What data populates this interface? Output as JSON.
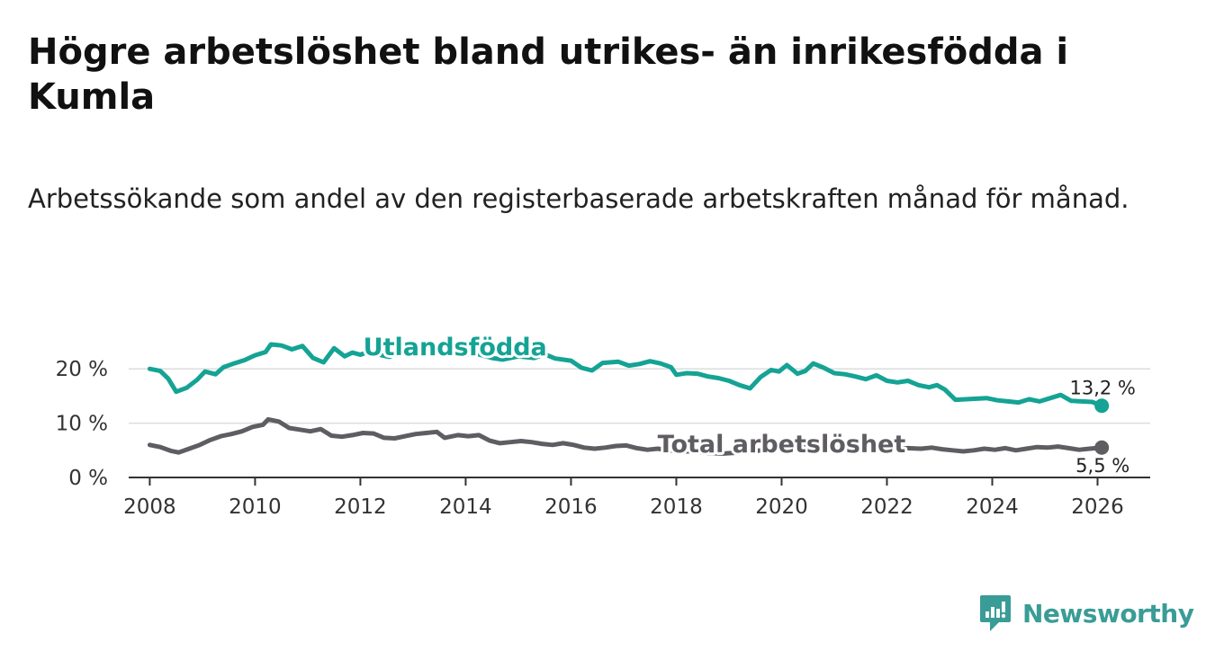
{
  "title": "Högre arbetslöshet bland utrikes- än inrikesfödda i Kumla",
  "subtitle": "Arbetssökande som andel av den registerbaserade arbetskraften månad för månad.",
  "brand": {
    "name": "Newsworthy",
    "icon": "newsworthy-logo-icon"
  },
  "colors": {
    "foreign_born": "#14a394",
    "total": "#5f5d62",
    "grid": "#dddddd",
    "axis": "#333333"
  },
  "chart_data": {
    "type": "line",
    "title": "Högre arbetslöshet bland utrikes- än inrikesfödda i Kumla",
    "subtitle": "Arbetssökande som andel av den registerbaserade arbetskraften månad för månad.",
    "xlabel": "",
    "ylabel": "",
    "xlim": [
      2007.6,
      2027.0
    ],
    "ylim": [
      0,
      25
    ],
    "x_ticks": [
      2008,
      2010,
      2012,
      2014,
      2016,
      2018,
      2020,
      2022,
      2024,
      2026
    ],
    "x_tick_labels": [
      "2008",
      "2010",
      "2012",
      "2014",
      "2016",
      "2018",
      "2020",
      "2022",
      "2024",
      "2026"
    ],
    "y_ticks": [
      0,
      10,
      20
    ],
    "y_tick_labels": [
      "0 %",
      "10 %",
      "20 %"
    ],
    "grid": "horizontal",
    "legend": "inline labels",
    "series": [
      {
        "name": "Utlandsfödda",
        "color": "#14a394",
        "end_label": "13,2 %",
        "last_value": 13.2,
        "points": [
          [
            2008.0,
            20.0
          ],
          [
            2008.2,
            19.6
          ],
          [
            2008.35,
            18.2
          ],
          [
            2008.5,
            15.8
          ],
          [
            2008.7,
            16.5
          ],
          [
            2008.9,
            18.0
          ],
          [
            2009.05,
            19.5
          ],
          [
            2009.25,
            19.0
          ],
          [
            2009.4,
            20.3
          ],
          [
            2009.6,
            21.0
          ],
          [
            2009.8,
            21.6
          ],
          [
            2010.0,
            22.5
          ],
          [
            2010.2,
            23.1
          ],
          [
            2010.3,
            24.5
          ],
          [
            2010.5,
            24.3
          ],
          [
            2010.7,
            23.6
          ],
          [
            2010.9,
            24.2
          ],
          [
            2011.1,
            22.0
          ],
          [
            2011.3,
            21.2
          ],
          [
            2011.5,
            23.8
          ],
          [
            2011.7,
            22.3
          ],
          [
            2011.85,
            23.0
          ],
          [
            2012.0,
            22.6
          ],
          [
            2012.2,
            23.3
          ],
          [
            2012.4,
            22.5
          ],
          [
            2012.55,
            22.2
          ],
          [
            2012.7,
            22.9
          ],
          [
            2013.0,
            23.0
          ],
          [
            2013.4,
            22.9
          ],
          [
            2013.8,
            22.6
          ],
          [
            2014.2,
            22.8
          ],
          [
            2014.5,
            22.0
          ],
          [
            2014.7,
            21.7
          ],
          [
            2015.0,
            22.3
          ],
          [
            2015.3,
            22.0
          ],
          [
            2015.5,
            22.7
          ],
          [
            2015.7,
            21.9
          ],
          [
            2016.0,
            21.5
          ],
          [
            2016.2,
            20.2
          ],
          [
            2016.4,
            19.7
          ],
          [
            2016.6,
            21.1
          ],
          [
            2016.9,
            21.3
          ],
          [
            2017.1,
            20.6
          ],
          [
            2017.3,
            20.9
          ],
          [
            2017.5,
            21.4
          ],
          [
            2017.7,
            21.0
          ],
          [
            2017.9,
            20.3
          ],
          [
            2018.0,
            18.9
          ],
          [
            2018.2,
            19.2
          ],
          [
            2018.4,
            19.1
          ],
          [
            2018.6,
            18.6
          ],
          [
            2018.8,
            18.3
          ],
          [
            2019.0,
            17.8
          ],
          [
            2019.2,
            17.0
          ],
          [
            2019.4,
            16.4
          ],
          [
            2019.6,
            18.5
          ],
          [
            2019.8,
            19.8
          ],
          [
            2019.95,
            19.5
          ],
          [
            2020.1,
            20.7
          ],
          [
            2020.3,
            19.1
          ],
          [
            2020.45,
            19.6
          ],
          [
            2020.6,
            21.0
          ],
          [
            2020.8,
            20.2
          ],
          [
            2021.0,
            19.2
          ],
          [
            2021.2,
            19.0
          ],
          [
            2021.4,
            18.6
          ],
          [
            2021.6,
            18.1
          ],
          [
            2021.8,
            18.8
          ],
          [
            2022.0,
            17.8
          ],
          [
            2022.2,
            17.5
          ],
          [
            2022.4,
            17.8
          ],
          [
            2022.6,
            17.0
          ],
          [
            2022.8,
            16.6
          ],
          [
            2022.95,
            17.0
          ],
          [
            2023.1,
            16.2
          ],
          [
            2023.3,
            14.3
          ],
          [
            2023.5,
            14.4
          ],
          [
            2023.7,
            14.5
          ],
          [
            2023.9,
            14.6
          ],
          [
            2024.1,
            14.2
          ],
          [
            2024.3,
            14.0
          ],
          [
            2024.5,
            13.8
          ],
          [
            2024.7,
            14.4
          ],
          [
            2024.9,
            14.0
          ],
          [
            2025.1,
            14.6
          ],
          [
            2025.3,
            15.2
          ],
          [
            2025.5,
            14.1
          ],
          [
            2025.7,
            14.0
          ],
          [
            2025.9,
            13.9
          ],
          [
            2026.08,
            13.2
          ]
        ]
      },
      {
        "name": "Total arbetslöshet",
        "color": "#5f5d62",
        "end_label": "5,5 %",
        "last_value": 5.5,
        "points": [
          [
            2008.0,
            6.0
          ],
          [
            2008.2,
            5.6
          ],
          [
            2008.4,
            4.9
          ],
          [
            2008.55,
            4.6
          ],
          [
            2008.75,
            5.3
          ],
          [
            2008.95,
            6.0
          ],
          [
            2009.15,
            6.9
          ],
          [
            2009.35,
            7.6
          ],
          [
            2009.55,
            8.0
          ],
          [
            2009.75,
            8.5
          ],
          [
            2009.95,
            9.3
          ],
          [
            2010.15,
            9.7
          ],
          [
            2010.25,
            10.7
          ],
          [
            2010.45,
            10.3
          ],
          [
            2010.65,
            9.1
          ],
          [
            2010.85,
            8.8
          ],
          [
            2011.05,
            8.5
          ],
          [
            2011.25,
            8.9
          ],
          [
            2011.45,
            7.7
          ],
          [
            2011.65,
            7.5
          ],
          [
            2011.85,
            7.8
          ],
          [
            2012.05,
            8.2
          ],
          [
            2012.25,
            8.1
          ],
          [
            2012.45,
            7.3
          ],
          [
            2012.65,
            7.2
          ],
          [
            2012.85,
            7.6
          ],
          [
            2013.05,
            8.0
          ],
          [
            2013.25,
            8.2
          ],
          [
            2013.45,
            8.4
          ],
          [
            2013.6,
            7.3
          ],
          [
            2013.85,
            7.8
          ],
          [
            2014.05,
            7.6
          ],
          [
            2014.25,
            7.8
          ],
          [
            2014.45,
            6.8
          ],
          [
            2014.65,
            6.3
          ],
          [
            2014.85,
            6.5
          ],
          [
            2015.05,
            6.7
          ],
          [
            2015.25,
            6.5
          ],
          [
            2015.45,
            6.2
          ],
          [
            2015.65,
            6.0
          ],
          [
            2015.85,
            6.3
          ],
          [
            2016.05,
            6.0
          ],
          [
            2016.25,
            5.5
          ],
          [
            2016.45,
            5.3
          ],
          [
            2016.65,
            5.5
          ],
          [
            2016.85,
            5.8
          ],
          [
            2017.05,
            5.9
          ],
          [
            2017.25,
            5.4
          ],
          [
            2017.45,
            5.1
          ],
          [
            2017.65,
            5.3
          ],
          [
            2017.85,
            5.0
          ],
          [
            2018.05,
            4.8
          ],
          [
            2018.3,
            4.8
          ],
          [
            2018.6,
            4.5
          ],
          [
            2018.9,
            4.4
          ],
          [
            2019.2,
            4.6
          ],
          [
            2019.5,
            4.9
          ],
          [
            2019.8,
            5.1
          ],
          [
            2020.1,
            5.4
          ],
          [
            2020.4,
            5.6
          ],
          [
            2020.7,
            5.5
          ],
          [
            2021.0,
            5.4
          ],
          [
            2021.3,
            5.3
          ],
          [
            2021.6,
            5.2
          ],
          [
            2021.9,
            5.1
          ],
          [
            2022.2,
            5.3
          ],
          [
            2022.4,
            5.4
          ],
          [
            2022.65,
            5.3
          ],
          [
            2022.85,
            5.5
          ],
          [
            2023.05,
            5.2
          ],
          [
            2023.25,
            5.0
          ],
          [
            2023.45,
            4.8
          ],
          [
            2023.65,
            5.0
          ],
          [
            2023.85,
            5.3
          ],
          [
            2024.05,
            5.1
          ],
          [
            2024.25,
            5.4
          ],
          [
            2024.45,
            5.0
          ],
          [
            2024.65,
            5.3
          ],
          [
            2024.85,
            5.6
          ],
          [
            2025.05,
            5.5
          ],
          [
            2025.25,
            5.7
          ],
          [
            2025.45,
            5.4
          ],
          [
            2025.65,
            5.1
          ],
          [
            2025.85,
            5.3
          ],
          [
            2026.08,
            5.5
          ]
        ]
      }
    ],
    "annotations": [
      {
        "series": "Utlandsfödda",
        "text": "Utlandsfödda",
        "anchor_x": 2013.8,
        "anchor_y": 24.2
      },
      {
        "series": "Total arbetslöshet",
        "text": "Total arbetslöshet",
        "anchor_x": 2020.0,
        "anchor_y": 6.3
      }
    ]
  }
}
